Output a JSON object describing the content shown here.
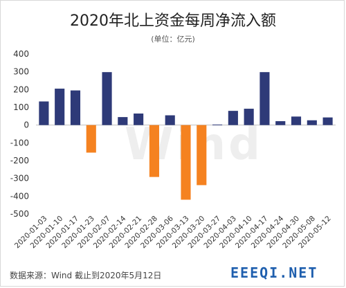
{
  "title": "2020年北上资金每周净流入额",
  "subtitle": "(单位：亿元)",
  "footer": {
    "source": "数据来源：Wind  截止到2020年5月12日"
  },
  "brand": {
    "text": "EEEQI.NET",
    "color": "#1f5fae"
  },
  "watermark": "Wind",
  "colors": {
    "positive": "#2e3a78",
    "negative": "#f58220",
    "axis": "#bfbfbf",
    "grid": "#ececec"
  },
  "chart_data": {
    "type": "bar",
    "title": "2020年北上资金每周净流入额",
    "subtitle": "(单位：亿元)",
    "xlabel": "",
    "ylabel": "",
    "ylim": [
      -500,
      400
    ],
    "yticks": [
      400,
      300,
      200,
      100,
      0,
      -100,
      -200,
      -300,
      -400,
      -500
    ],
    "grid": false,
    "legend": "none",
    "categories": [
      "2020-01-03",
      "2020-01-10",
      "2020-01-17",
      "2020-01-23",
      "2020-02-07",
      "2020-02-14",
      "2020-02-21",
      "2020-02-28",
      "2020-03-06",
      "2020-03-13",
      "2020-03-20",
      "2020-03-27",
      "2020-04-03",
      "2020-04-10",
      "2020-04-17",
      "2020-04-24",
      "2020-04-30",
      "2020-05-08",
      "2020-05-12"
    ],
    "values": [
      133,
      205,
      195,
      -155,
      298,
      45,
      65,
      -292,
      55,
      -420,
      -338,
      3,
      80,
      92,
      298,
      22,
      48,
      27,
      43
    ]
  }
}
